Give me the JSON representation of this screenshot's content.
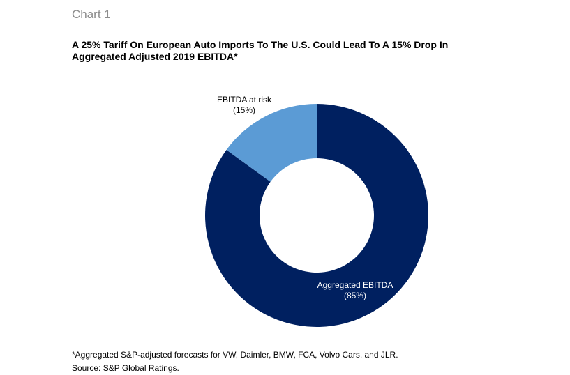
{
  "header": {
    "chart_number": "Chart 1",
    "title_line1": "A 25% Tariff On European Auto Imports To The U.S. Could Lead To A 15% Drop In",
    "title_line2": "Aggregated Adjusted 2019 EBITDA*"
  },
  "footer": {
    "note": "*Aggregated S&P-adjusted forecasts for VW, Daimler, BMW, FCA, Volvo Cars, and JLR.",
    "source": "Source: S&P Global Ratings."
  },
  "chart_data": {
    "type": "pie",
    "style": "donut",
    "title": "A 25% Tariff On European Auto Imports To The U.S. Could Lead To A 15% Drop In Aggregated Adjusted 2019 EBITDA*",
    "slices": [
      {
        "label": "EBITDA at risk",
        "value_label": "(15%)",
        "value": 15,
        "color": "#5b9bd5"
      },
      {
        "label": "Aggregated EBITDA",
        "value_label": "(85%)",
        "value": 85,
        "color": "#002060"
      }
    ],
    "start_angle": "12 o'clock",
    "direction": "counter-clockwise for at-risk slice"
  }
}
